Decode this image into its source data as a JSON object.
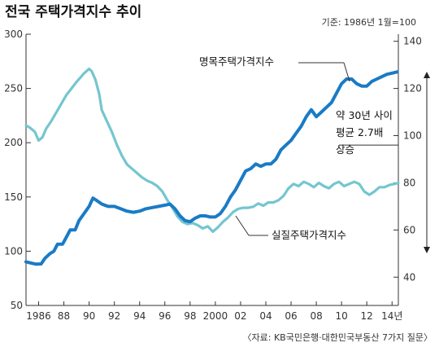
{
  "title": "전국 주택가격지수 추이",
  "base_note": "기준: 1986년 1월=100",
  "source": "〈자료: KB국민은행·대한민국부동산 7가지 질문〉",
  "annotation_lines": [
    "약 30년 사이",
    "평균 2.7배",
    "상승"
  ],
  "colors": {
    "nominal": "#1a7bc6",
    "real": "#74c6cf",
    "axis": "#333333",
    "gridline": "#333333"
  },
  "chart_data": {
    "type": "line",
    "x_tick_labels": [
      "1986",
      "88",
      "90",
      "92",
      "94",
      "96",
      "98",
      "2000",
      "02",
      "04",
      "06",
      "08",
      "10",
      "12",
      "14년"
    ],
    "x_ticks": [
      1986,
      1988,
      1990,
      1992,
      1994,
      1996,
      1998,
      2000,
      2002,
      2004,
      2006,
      2008,
      2010,
      2012,
      2014
    ],
    "xlim": [
      1985.0,
      2014.5
    ],
    "left_axis": {
      "ticks": [
        50,
        100,
        150,
        200,
        250,
        300
      ],
      "ylim": [
        50,
        300
      ]
    },
    "right_axis": {
      "ticks": [
        40,
        60,
        80,
        100,
        120,
        140
      ],
      "ylim": [
        28,
        143
      ]
    },
    "series": [
      {
        "name": "명목주택가격지수",
        "axis": "right",
        "points": [
          [
            1985.0,
            46.5
          ],
          [
            1985.4,
            46
          ],
          [
            1985.8,
            45.5
          ],
          [
            1986.2,
            45.6
          ],
          [
            1986.5,
            48
          ],
          [
            1986.9,
            50
          ],
          [
            1987.2,
            51
          ],
          [
            1987.5,
            54
          ],
          [
            1987.9,
            54
          ],
          [
            1988.2,
            57
          ],
          [
            1988.5,
            60
          ],
          [
            1988.9,
            60
          ],
          [
            1989.2,
            64
          ],
          [
            1989.6,
            67
          ],
          [
            1990.0,
            70
          ],
          [
            1990.3,
            73.5
          ],
          [
            1990.6,
            72.5
          ],
          [
            1991.0,
            71
          ],
          [
            1991.5,
            70
          ],
          [
            1992.0,
            70
          ],
          [
            1992.5,
            69
          ],
          [
            1993.0,
            68
          ],
          [
            1993.5,
            67.5
          ],
          [
            1994.0,
            68
          ],
          [
            1994.5,
            69
          ],
          [
            1995.0,
            69.5
          ],
          [
            1995.5,
            70
          ],
          [
            1996.0,
            70.5
          ],
          [
            1996.4,
            71
          ],
          [
            1996.8,
            69
          ],
          [
            1997.2,
            66
          ],
          [
            1997.6,
            64
          ],
          [
            1998.0,
            63.5
          ],
          [
            1998.4,
            65
          ],
          [
            1998.8,
            66
          ],
          [
            1999.2,
            66
          ],
          [
            1999.6,
            65.5
          ],
          [
            2000.0,
            65.5
          ],
          [
            2000.4,
            67
          ],
          [
            2000.8,
            70
          ],
          [
            2001.2,
            74
          ],
          [
            2001.6,
            77
          ],
          [
            2002.0,
            81
          ],
          [
            2002.4,
            85
          ],
          [
            2002.8,
            86
          ],
          [
            2003.2,
            88
          ],
          [
            2003.6,
            87
          ],
          [
            2004.0,
            88
          ],
          [
            2004.4,
            88
          ],
          [
            2004.8,
            90
          ],
          [
            2005.2,
            94
          ],
          [
            2005.6,
            96
          ],
          [
            2006.0,
            98
          ],
          [
            2006.4,
            101
          ],
          [
            2006.8,
            104
          ],
          [
            2007.2,
            108
          ],
          [
            2007.6,
            111
          ],
          [
            2008.0,
            108
          ],
          [
            2008.4,
            110
          ],
          [
            2008.8,
            112
          ],
          [
            2009.2,
            114
          ],
          [
            2009.6,
            118
          ],
          [
            2010.0,
            122
          ],
          [
            2010.4,
            124
          ],
          [
            2010.8,
            124
          ],
          [
            2011.2,
            122
          ],
          [
            2011.6,
            121
          ],
          [
            2012.0,
            121
          ],
          [
            2012.4,
            123
          ],
          [
            2012.8,
            124
          ],
          [
            2013.2,
            125
          ],
          [
            2013.6,
            126
          ],
          [
            2014.0,
            126.5
          ],
          [
            2014.4,
            127
          ]
        ]
      },
      {
        "name": "실질주택가격지수",
        "axis": "left",
        "points": [
          [
            1985.0,
            216
          ],
          [
            1985.3,
            214
          ],
          [
            1985.7,
            210
          ],
          [
            1986.0,
            202
          ],
          [
            1986.3,
            205
          ],
          [
            1986.6,
            213
          ],
          [
            1987.0,
            220
          ],
          [
            1987.4,
            228
          ],
          [
            1987.8,
            236
          ],
          [
            1988.2,
            244
          ],
          [
            1988.6,
            250
          ],
          [
            1989.0,
            256
          ],
          [
            1989.3,
            260
          ],
          [
            1989.6,
            264
          ],
          [
            1990.0,
            268
          ],
          [
            1990.2,
            266
          ],
          [
            1990.5,
            258
          ],
          [
            1990.8,
            245
          ],
          [
            1991.0,
            230
          ],
          [
            1991.4,
            220
          ],
          [
            1991.8,
            210
          ],
          [
            1992.2,
            198
          ],
          [
            1992.6,
            188
          ],
          [
            1993.0,
            180
          ],
          [
            1993.4,
            176
          ],
          [
            1993.8,
            172
          ],
          [
            1994.2,
            168
          ],
          [
            1994.6,
            165
          ],
          [
            1995.0,
            163
          ],
          [
            1995.4,
            160
          ],
          [
            1995.8,
            155
          ],
          [
            1996.2,
            147
          ],
          [
            1996.6,
            140
          ],
          [
            1997.0,
            132
          ],
          [
            1997.4,
            127
          ],
          [
            1997.8,
            125
          ],
          [
            1998.2,
            126
          ],
          [
            1998.6,
            124
          ],
          [
            1999.0,
            121
          ],
          [
            1999.4,
            123
          ],
          [
            1999.8,
            118
          ],
          [
            2000.2,
            122
          ],
          [
            2000.6,
            127
          ],
          [
            2001.0,
            131
          ],
          [
            2001.4,
            136
          ],
          [
            2001.8,
            139
          ],
          [
            2002.2,
            140
          ],
          [
            2002.6,
            140
          ],
          [
            2003.0,
            141
          ],
          [
            2003.4,
            144
          ],
          [
            2003.8,
            142
          ],
          [
            2004.2,
            145
          ],
          [
            2004.6,
            145
          ],
          [
            2005.0,
            147
          ],
          [
            2005.4,
            151
          ],
          [
            2005.8,
            158
          ],
          [
            2006.2,
            162
          ],
          [
            2006.6,
            160
          ],
          [
            2007.0,
            164
          ],
          [
            2007.4,
            162
          ],
          [
            2007.8,
            159
          ],
          [
            2008.2,
            163
          ],
          [
            2008.6,
            160
          ],
          [
            2009.0,
            158
          ],
          [
            2009.4,
            162
          ],
          [
            2009.8,
            164
          ],
          [
            2010.2,
            160
          ],
          [
            2010.6,
            162
          ],
          [
            2011.0,
            164
          ],
          [
            2011.4,
            162
          ],
          [
            2011.8,
            155
          ],
          [
            2012.2,
            152
          ],
          [
            2012.6,
            155
          ],
          [
            2013.0,
            159
          ],
          [
            2013.4,
            159
          ],
          [
            2013.8,
            161
          ],
          [
            2014.2,
            162
          ],
          [
            2014.5,
            163
          ]
        ]
      }
    ],
    "series_labels": [
      "명목주택가격지수",
      "실질주택가격지수"
    ]
  }
}
